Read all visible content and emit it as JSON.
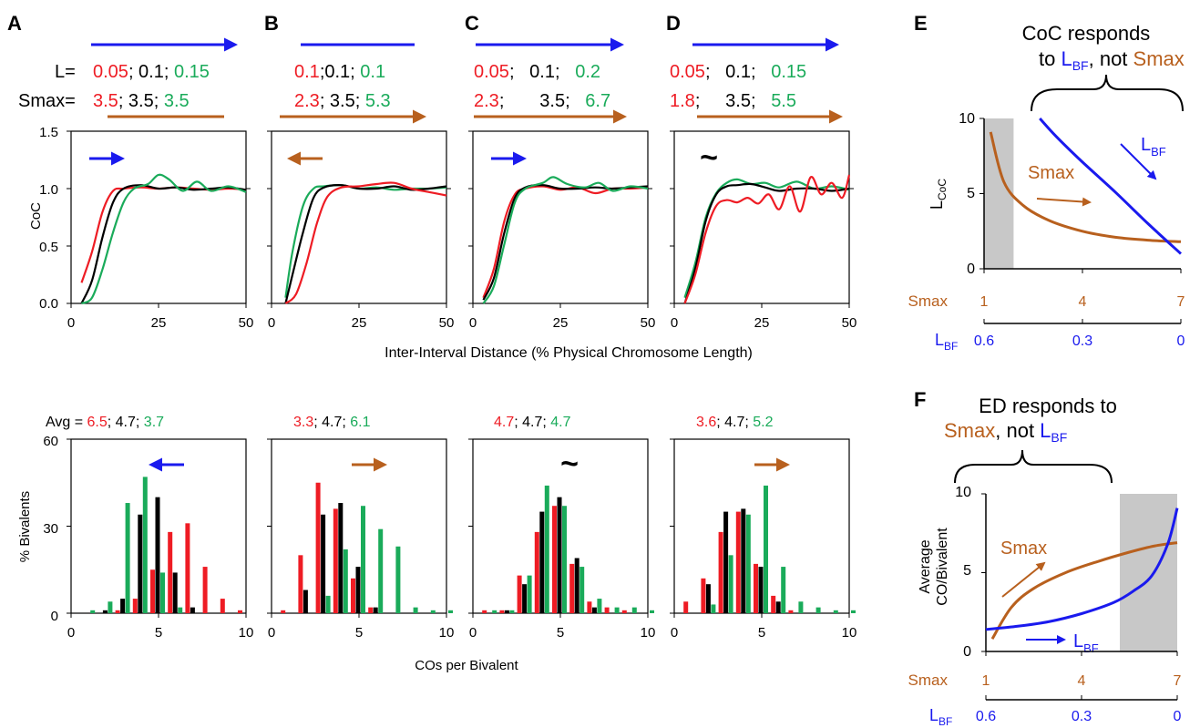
{
  "colors": {
    "red": "#ee1c24",
    "black": "#000000",
    "green": "#1aab5a",
    "blue": "#1a1aee",
    "orange": "#b8601e",
    "shade": "#c8c8c8"
  },
  "panel_letters": [
    "A",
    "B",
    "C",
    "D",
    "E",
    "F"
  ],
  "header_labels": {
    "L": "L=",
    "Smax": "Smax="
  },
  "panels": [
    {
      "letter": "A",
      "L": [
        "0.05",
        "; 0.1; ",
        "0.15"
      ],
      "S": [
        "3.5",
        "; 3.5; ",
        "3.5"
      ],
      "trend_coc": "blue-right",
      "trend_ed": "blue-left",
      "avg": [
        "6.5",
        "; 4.7; ",
        "3.7"
      ],
      "avg_prefix": "Avg = "
    },
    {
      "letter": "B",
      "L": [
        "0.1",
        ";0.1; ",
        "0.1"
      ],
      "S": [
        "2.3",
        "; 3.5; ",
        "5.3"
      ],
      "trend_coc": "orange-left",
      "trend_ed": "orange-right",
      "avg": [
        "3.3",
        "; 4.7; ",
        "6.1"
      ],
      "avg_prefix": ""
    },
    {
      "letter": "C",
      "L": [
        "0.05",
        ";   0.1;   ",
        "0.2"
      ],
      "S": [
        "2.3",
        ";       3.5;   ",
        "6.7"
      ],
      "trend_coc": "blue-right",
      "trend_ed": "~",
      "avg": [
        "4.7",
        "; 4.7; ",
        "4.7"
      ],
      "avg_prefix": ""
    },
    {
      "letter": "D",
      "L": [
        "0.05",
        ";   0.1;   ",
        "0.15"
      ],
      "S": [
        "1.8",
        ";     3.5;   ",
        "5.5"
      ],
      "trend_coc": "~",
      "trend_ed": "orange-right",
      "avg": [
        "3.6",
        "; 4.7; ",
        "5.2"
      ],
      "avg_prefix": ""
    }
  ],
  "coc_axis": {
    "ylabel": "CoC",
    "xlabel": "Inter-Interval Distance (% Physical Chromosome Length)",
    "yticks": [
      "0.0",
      "0.5",
      "1.0",
      "1.5"
    ],
    "xticks": [
      "0",
      "25",
      "50"
    ]
  },
  "ed_axis": {
    "ylabel": "% Bivalents",
    "xlabel": "COs per Bivalent",
    "yticks": [
      "0",
      "30",
      "60"
    ],
    "xticks": [
      "0",
      "5",
      "10"
    ]
  },
  "panelE": {
    "title_lines": [
      "CoC responds",
      "to "
    ],
    "title_lbf": "L",
    "title_lbf_sub": "BF",
    "title_mid": ", not ",
    "title_smax": "Smax",
    "ylabel": "L",
    "ylabel_sub": "CoC",
    "yticks": [
      "0",
      "5",
      "10"
    ],
    "smax_label": "Smax",
    "smax_ticks": [
      "1",
      "4",
      "7"
    ],
    "lbf_label": "L",
    "lbf_sub": "BF",
    "lbf_ticks": [
      "0.6",
      "0.3",
      "0"
    ],
    "curve_smax": "Smax",
    "curve_lbf": "L",
    "curve_lbf_sub": "BF"
  },
  "panelF": {
    "title_line1": "ED responds to",
    "title_smax": "Smax",
    "title_mid": ", not ",
    "title_lbf": "L",
    "title_lbf_sub": "BF",
    "ylabel_lines": [
      "Average",
      "CO/Bivalent"
    ],
    "yticks": [
      "0",
      "5",
      "10"
    ],
    "smax_label": "Smax",
    "smax_ticks": [
      "1",
      "4",
      "7"
    ],
    "lbf_label": "L",
    "lbf_sub": "BF",
    "lbf_ticks": [
      "0.6",
      "0.3",
      "0"
    ],
    "curve_smax": "Smax",
    "curve_lbf": "L",
    "curve_lbf_sub": "BF"
  },
  "chart_data": [
    {
      "type": "line",
      "panel": "A",
      "ylabel": "CoC",
      "ylim": [
        0,
        1.5
      ],
      "xlim": [
        0,
        50
      ],
      "series": [
        {
          "color": "red",
          "x": [
            3,
            6,
            9,
            12,
            15,
            20,
            25,
            30,
            35,
            40,
            45,
            50
          ],
          "y": [
            0.18,
            0.45,
            0.8,
            0.98,
            1.0,
            1.01,
            1.0,
            1.01,
            1.0,
            0.99,
            1.0,
            0.99
          ]
        },
        {
          "color": "black",
          "x": [
            3,
            6,
            9,
            12,
            15,
            20,
            25,
            30,
            35,
            40,
            45,
            50
          ],
          "y": [
            0.0,
            0.2,
            0.58,
            0.88,
            1.0,
            1.03,
            1.0,
            1.01,
            0.99,
            1.0,
            1.01,
            0.99
          ]
        },
        {
          "color": "green",
          "x": [
            3,
            6,
            9,
            12,
            15,
            18,
            22,
            25,
            28,
            32,
            36,
            40,
            45,
            50
          ],
          "y": [
            0.0,
            0.05,
            0.3,
            0.62,
            0.88,
            1.0,
            1.04,
            1.12,
            1.08,
            0.98,
            1.06,
            0.98,
            1.02,
            0.97
          ]
        }
      ]
    },
    {
      "type": "line",
      "panel": "B",
      "ylabel": "CoC",
      "ylim": [
        0,
        1.5
      ],
      "xlim": [
        0,
        50
      ],
      "series": [
        {
          "color": "green",
          "x": [
            4,
            6,
            9,
            12,
            15,
            20,
            25,
            30,
            35,
            40,
            45,
            50
          ],
          "y": [
            0.05,
            0.45,
            0.85,
            1.0,
            1.02,
            1.03,
            1.0,
            1.01,
            0.99,
            1.0,
            1.0,
            1.01
          ]
        },
        {
          "color": "black",
          "x": [
            4,
            6,
            9,
            12,
            15,
            20,
            25,
            30,
            35,
            40,
            45,
            50
          ],
          "y": [
            0.0,
            0.25,
            0.62,
            0.92,
            1.01,
            1.03,
            1.0,
            1.0,
            1.02,
            0.99,
            1.0,
            1.02
          ]
        },
        {
          "color": "red",
          "x": [
            4,
            7,
            10,
            13,
            16,
            20,
            25,
            30,
            35,
            40,
            45,
            50
          ],
          "y": [
            0.0,
            0.08,
            0.35,
            0.7,
            0.93,
            1.01,
            1.02,
            1.04,
            1.05,
            1.0,
            0.97,
            0.94
          ]
        }
      ]
    },
    {
      "type": "line",
      "panel": "C",
      "ylabel": "CoC",
      "ylim": [
        0,
        1.5
      ],
      "xlim": [
        0,
        50
      ],
      "series": [
        {
          "color": "red",
          "x": [
            3,
            6,
            9,
            12,
            15,
            20,
            25,
            30,
            35,
            40,
            45,
            50
          ],
          "y": [
            0.05,
            0.3,
            0.72,
            0.95,
            1.0,
            1.02,
            0.99,
            1.01,
            0.96,
            1.0,
            1.0,
            1.01
          ]
        },
        {
          "color": "black",
          "x": [
            3,
            6,
            9,
            12,
            15,
            20,
            25,
            30,
            35,
            40,
            45,
            50
          ],
          "y": [
            0.03,
            0.22,
            0.62,
            0.92,
            1.01,
            1.03,
            1.0,
            1.0,
            1.01,
            1.0,
            1.01,
            1.02
          ]
        },
        {
          "color": "green",
          "x": [
            3,
            6,
            9,
            12,
            15,
            20,
            23,
            27,
            32,
            36,
            40,
            45,
            50
          ],
          "y": [
            0.0,
            0.15,
            0.52,
            0.88,
            1.0,
            1.05,
            1.1,
            1.04,
            1.01,
            1.05,
            0.98,
            1.02,
            1.0
          ]
        }
      ]
    },
    {
      "type": "line",
      "panel": "D",
      "ylabel": "CoC",
      "ylim": [
        0,
        1.5
      ],
      "xlim": [
        0,
        50
      ],
      "series": [
        {
          "color": "green",
          "x": [
            3,
            6,
            9,
            12,
            15,
            18,
            22,
            26,
            30,
            35,
            40,
            45,
            50
          ],
          "y": [
            0.05,
            0.35,
            0.75,
            0.96,
            1.05,
            1.08,
            1.04,
            1.05,
            1.01,
            1.06,
            1.0,
            1.02,
            0.99
          ]
        },
        {
          "color": "black",
          "x": [
            3,
            6,
            9,
            12,
            15,
            18,
            22,
            26,
            30,
            35,
            40,
            45,
            50
          ],
          "y": [
            0.0,
            0.3,
            0.72,
            0.95,
            1.02,
            1.03,
            1.04,
            1.01,
            0.98,
            1.0,
            1.0,
            0.98,
            1.0
          ]
        },
        {
          "color": "red",
          "x": [
            3,
            6,
            9,
            12,
            15,
            18,
            21,
            24,
            27,
            30,
            33,
            36,
            39,
            42,
            45,
            48,
            50
          ],
          "y": [
            0.0,
            0.25,
            0.62,
            0.85,
            0.9,
            0.88,
            0.92,
            0.87,
            0.95,
            0.82,
            1.02,
            0.8,
            1.1,
            0.95,
            1.05,
            0.92,
            1.12
          ]
        }
      ]
    },
    {
      "type": "bar",
      "panel": "A",
      "ylabel": "% Bivalents",
      "ylim": [
        0,
        60
      ],
      "xlim": [
        0,
        10
      ],
      "categories": [
        1,
        2,
        3,
        4,
        5,
        6,
        7,
        8,
        9,
        10
      ],
      "series": [
        {
          "color": "red",
          "values": [
            0,
            0,
            1,
            5,
            15,
            28,
            31,
            16,
            5,
            1
          ]
        },
        {
          "color": "black",
          "values": [
            0,
            1,
            5,
            34,
            40,
            14,
            2,
            0,
            0,
            0
          ]
        },
        {
          "color": "green",
          "values": [
            1,
            4,
            38,
            47,
            14,
            2,
            0,
            0,
            0,
            0
          ]
        }
      ]
    },
    {
      "type": "bar",
      "panel": "B",
      "ylabel": "% Bivalents",
      "ylim": [
        0,
        60
      ],
      "xlim": [
        0,
        10
      ],
      "categories": [
        1,
        2,
        3,
        4,
        5,
        6,
        7,
        8,
        9,
        10
      ],
      "series": [
        {
          "color": "red",
          "values": [
            1,
            20,
            45,
            36,
            12,
            2,
            0,
            0,
            0,
            0
          ]
        },
        {
          "color": "black",
          "values": [
            0,
            8,
            34,
            38,
            16,
            2,
            0,
            0,
            0,
            0
          ]
        },
        {
          "color": "green",
          "values": [
            0,
            0,
            6,
            22,
            37,
            29,
            23,
            2,
            1,
            1
          ]
        }
      ]
    },
    {
      "type": "bar",
      "panel": "C",
      "ylabel": "% Bivalents",
      "ylim": [
        0,
        60
      ],
      "xlim": [
        0,
        10
      ],
      "categories": [
        1,
        2,
        3,
        4,
        5,
        6,
        7,
        8,
        9,
        10
      ],
      "series": [
        {
          "color": "red",
          "values": [
            1,
            1,
            13,
            28,
            37,
            17,
            4,
            2,
            1,
            0
          ]
        },
        {
          "color": "black",
          "values": [
            0,
            1,
            10,
            35,
            40,
            19,
            2,
            0,
            0,
            0
          ]
        },
        {
          "color": "green",
          "values": [
            1,
            1,
            13,
            44,
            37,
            16,
            5,
            2,
            2,
            1
          ]
        }
      ]
    },
    {
      "type": "bar",
      "panel": "D",
      "ylabel": "% Bivalents",
      "ylim": [
        0,
        60
      ],
      "xlim": [
        0,
        10
      ],
      "categories": [
        1,
        2,
        3,
        4,
        5,
        6,
        7,
        8,
        9,
        10
      ],
      "series": [
        {
          "color": "red",
          "values": [
            4,
            12,
            28,
            35,
            17,
            6,
            1,
            0,
            0,
            0
          ]
        },
        {
          "color": "black",
          "values": [
            0,
            10,
            35,
            36,
            16,
            4,
            0,
            0,
            0,
            0
          ]
        },
        {
          "color": "green",
          "values": [
            0,
            3,
            20,
            34,
            44,
            16,
            4,
            2,
            1,
            1
          ]
        }
      ]
    },
    {
      "type": "line",
      "panel": "E",
      "ylabel": "LCoC",
      "ylim": [
        0,
        10
      ],
      "xlim": [
        1,
        7
      ],
      "shaded_x": [
        1,
        1.9
      ],
      "series": [
        {
          "name": "Smax",
          "color": "orange",
          "x": [
            1.2,
            1.6,
            2.2,
            3,
            4,
            5,
            6,
            7
          ],
          "y": [
            9.1,
            5.8,
            4.2,
            3.2,
            2.5,
            2.1,
            1.9,
            1.8
          ]
        },
        {
          "name": "LBF",
          "color": "blue",
          "x": [
            2.7,
            3.2,
            4,
            5,
            6,
            7
          ],
          "y": [
            10,
            8.8,
            7.1,
            5.1,
            3.0,
            1.0
          ]
        }
      ]
    },
    {
      "type": "line",
      "panel": "F",
      "ylabel": "Average CO/Bivalent",
      "ylim": [
        0,
        10
      ],
      "xlim": [
        1,
        7
      ],
      "shaded_x": [
        5.2,
        7
      ],
      "series": [
        {
          "name": "Smax",
          "color": "orange",
          "x": [
            1.2,
            1.8,
            2.5,
            3.5,
            4.5,
            5.5,
            6.3,
            7
          ],
          "y": [
            0.8,
            2.8,
            4.0,
            5.0,
            5.7,
            6.3,
            6.7,
            6.9
          ]
        },
        {
          "name": "LBF",
          "color": "blue",
          "x": [
            1,
            2,
            3,
            4,
            5,
            5.6,
            6.2,
            6.7,
            7
          ],
          "y": [
            1.4,
            1.6,
            1.9,
            2.4,
            3.1,
            3.8,
            4.8,
            6.8,
            9.1
          ]
        }
      ]
    }
  ]
}
